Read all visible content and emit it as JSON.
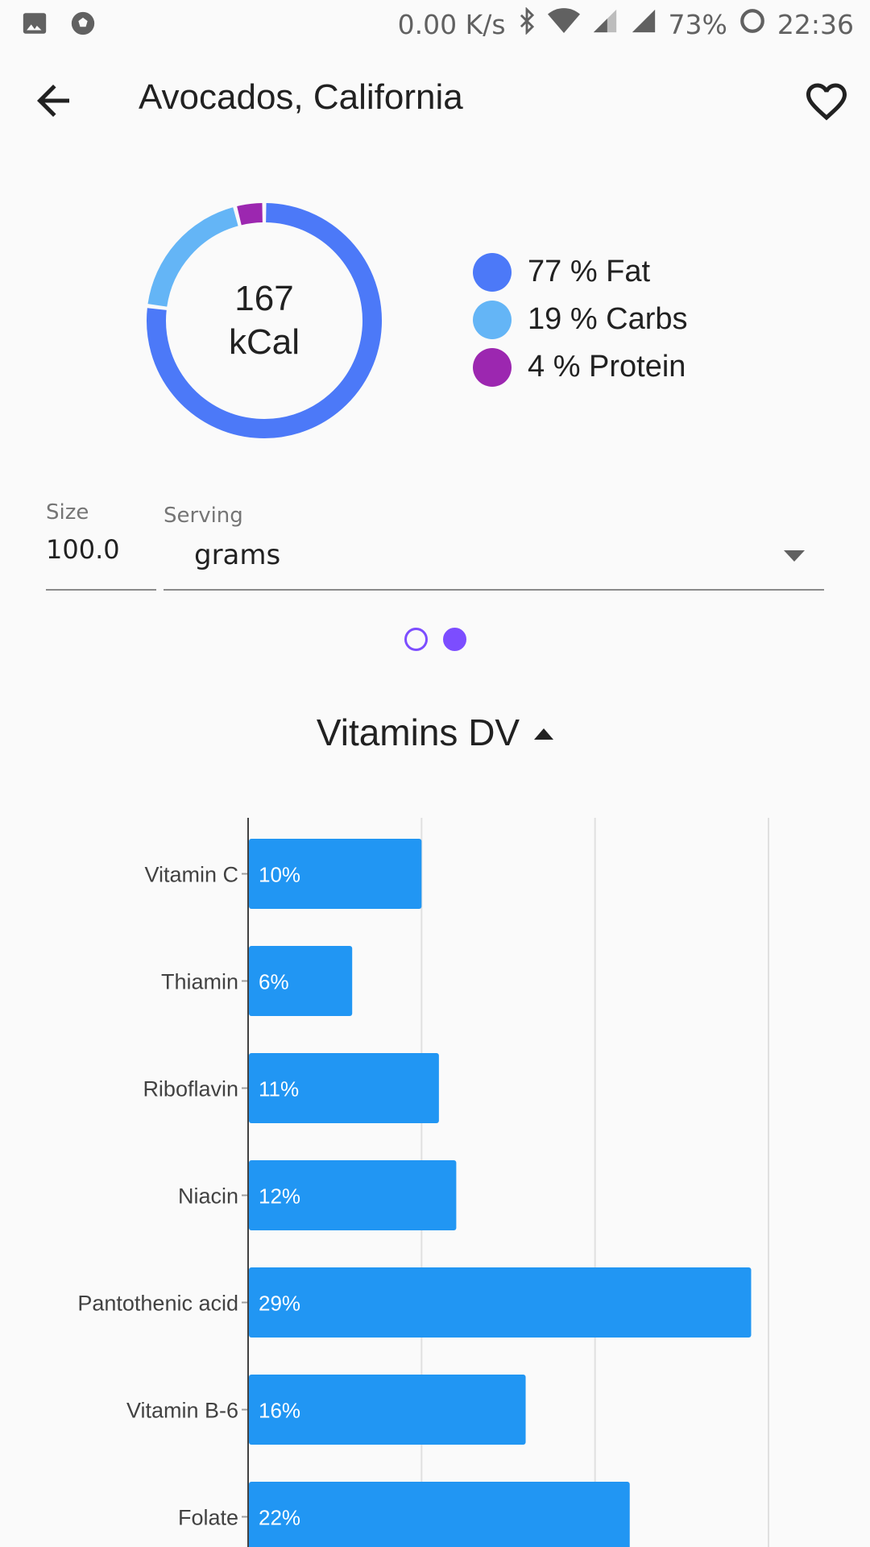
{
  "status_bar": {
    "net_speed": "0.00 K/s",
    "battery": "73%",
    "time": "22:36",
    "icons": [
      "image-icon",
      "soccer-ball-icon",
      "bluetooth-icon",
      "wifi-icon",
      "signal-roaming-icon",
      "signal-icon",
      "battery-ring-icon"
    ]
  },
  "app_bar": {
    "title": "Avocados, California",
    "back_icon": "arrow-back-icon",
    "favorite_icon": "heart-outline-icon"
  },
  "calories": {
    "value": "167",
    "unit": "kCal"
  },
  "macros": [
    {
      "label": "77 % Fat",
      "percent": 77,
      "color": "#4c79f8"
    },
    {
      "label": "19 % Carbs",
      "percent": 19,
      "color": "#64b5f6"
    },
    {
      "label": "4 % Protein",
      "percent": 4,
      "color": "#9c27b0"
    }
  ],
  "serving": {
    "size_label": "Size",
    "size_value": "100.0",
    "serving_label": "Serving",
    "serving_value": "grams"
  },
  "pager": {
    "pages": 2,
    "active_index": 1
  },
  "section": {
    "title": "Vitamins DV"
  },
  "chart_data": {
    "type": "bar",
    "orientation": "horizontal",
    "categories": [
      "Vitamin C",
      "Thiamin",
      "Riboflavin",
      "Niacin",
      "Pantothenic acid",
      "Vitamin B-6",
      "Folate"
    ],
    "values": [
      10,
      6,
      11,
      12,
      29,
      16,
      22
    ],
    "data_labels": [
      "10%",
      "6%",
      "11%",
      "12%",
      "29%",
      "16%",
      "22%"
    ],
    "xlim": [
      0,
      30
    ],
    "grid": true,
    "bar_color": "#2196f3"
  }
}
